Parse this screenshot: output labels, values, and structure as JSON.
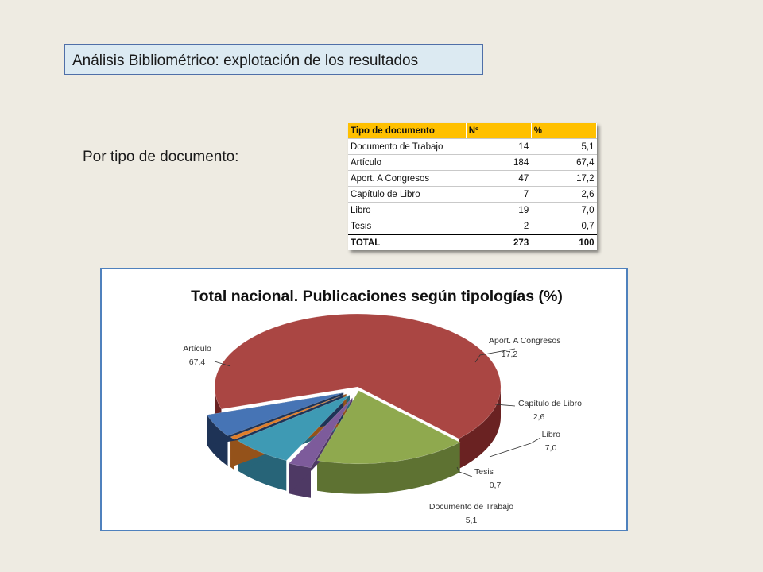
{
  "slide": {
    "title": "Análisis Bibliométrico: explotación de los resultados",
    "subtitle": "Por tipo de documento:"
  },
  "table": {
    "headers": [
      "Tipo de documento",
      "Nº",
      "%"
    ],
    "rows": [
      [
        "Documento de Trabajo",
        "14",
        "5,1"
      ],
      [
        "Artículo",
        "184",
        "67,4"
      ],
      [
        "Aport. A Congresos",
        "47",
        "17,2"
      ],
      [
        "Capítulo de Libro",
        "7",
        "2,6"
      ],
      [
        "Libro",
        "19",
        "7,0"
      ],
      [
        "Tesis",
        "2",
        "0,7"
      ]
    ],
    "total": [
      "TOTAL",
      "273",
      "100"
    ]
  },
  "chart_data": {
    "type": "pie",
    "title": "Total nacional. Publicaciones según tipologías (%)",
    "slices": [
      {
        "label": "Aport. A Congresos",
        "value": 17.2,
        "display": "17,2",
        "color": "#8FA94E",
        "side": "#5E7232"
      },
      {
        "label": "Capítulo de Libro",
        "value": 2.6,
        "display": "2,6",
        "color": "#7D5B9B",
        "side": "#4E3964"
      },
      {
        "label": "Libro",
        "value": 7.0,
        "display": "7,0",
        "color": "#3E9AB4",
        "side": "#276478"
      },
      {
        "label": "Tesis",
        "value": 0.7,
        "display": "0,7",
        "color": "#E07E2A",
        "side": "#94521A"
      },
      {
        "label": "Documento de Trabajo",
        "value": 5.1,
        "display": "5,1",
        "color": "#4674B5",
        "side": "#1E3356"
      },
      {
        "label": "Artículo",
        "value": 67.4,
        "display": "67,4",
        "color": "#AA4643",
        "side": "#6A2222"
      }
    ],
    "exploded": true,
    "three_d": true,
    "legend": "none"
  }
}
